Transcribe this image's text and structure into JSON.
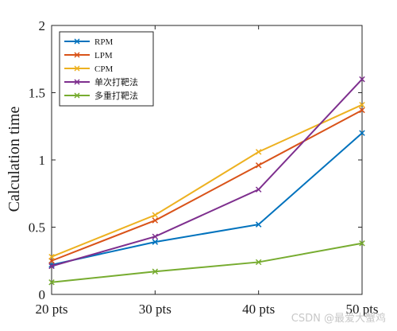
{
  "chart_data": {
    "type": "line",
    "categories": [
      "20 pts",
      "30 pts",
      "40 pts",
      "50 pts"
    ],
    "ylabel": "Calculation time",
    "xlabel": "",
    "ylim": [
      0,
      2
    ],
    "yticks": [
      "0",
      "0.5",
      "1",
      "1.5",
      "2"
    ],
    "grid": false,
    "legend_position": "top-left",
    "series": [
      {
        "name": "RPM",
        "color": "#0072BD",
        "values": [
          0.22,
          0.39,
          0.52,
          1.2
        ]
      },
      {
        "name": "LPM",
        "color": "#D95319",
        "values": [
          0.25,
          0.55,
          0.96,
          1.37
        ]
      },
      {
        "name": "CPM",
        "color": "#EDB120",
        "values": [
          0.28,
          0.59,
          1.06,
          1.41
        ]
      },
      {
        "name": "单次打靶法",
        "color": "#7E2F8E",
        "values": [
          0.21,
          0.43,
          0.78,
          1.6
        ]
      },
      {
        "name": "多重打靶法",
        "color": "#77AC30",
        "values": [
          0.09,
          0.17,
          0.24,
          0.38
        ]
      }
    ]
  },
  "watermark": "CSDN @最爱大蟹鸡"
}
